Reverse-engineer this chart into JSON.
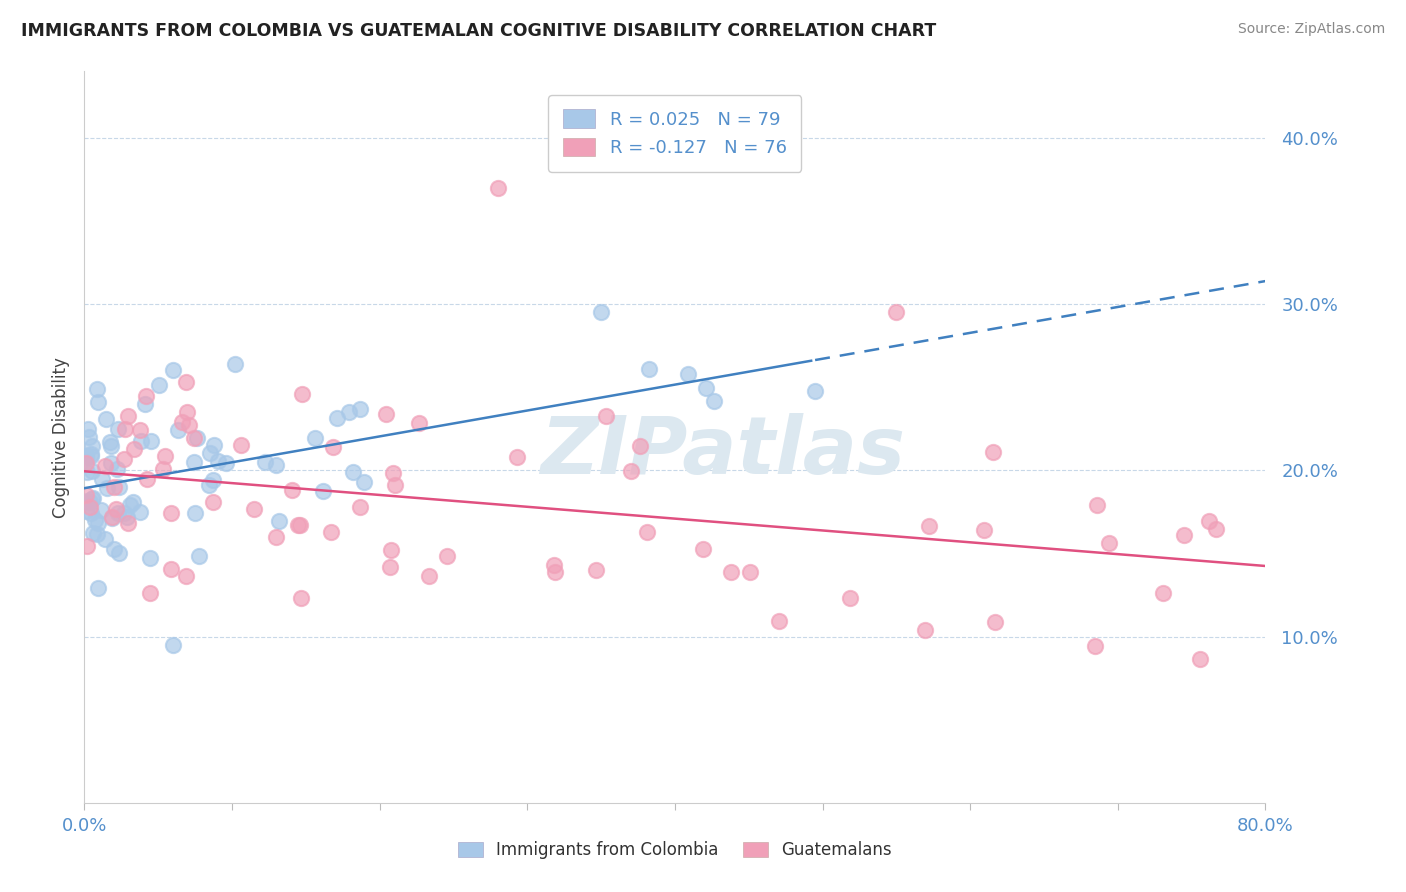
{
  "title": "IMMIGRANTS FROM COLOMBIA VS GUATEMALAN COGNITIVE DISABILITY CORRELATION CHART",
  "source": "Source: ZipAtlas.com",
  "ylabel": "Cognitive Disability",
  "xlim": [
    0.0,
    0.8
  ],
  "ylim": [
    0.0,
    0.44
  ],
  "ytick_vals": [
    0.1,
    0.2,
    0.3,
    0.4
  ],
  "colombia_R": 0.025,
  "colombia_N": 79,
  "guatemalan_R": -0.127,
  "guatemalan_N": 76,
  "colombia_color": "#a8c8e8",
  "guatemalan_color": "#f0a0b8",
  "colombia_line_color": "#4080c0",
  "guatemalan_line_color": "#e05080",
  "background_color": "#ffffff",
  "grid_color": "#c8d8e8",
  "tick_color": "#5590cc",
  "watermark_color": "#dce8f0"
}
